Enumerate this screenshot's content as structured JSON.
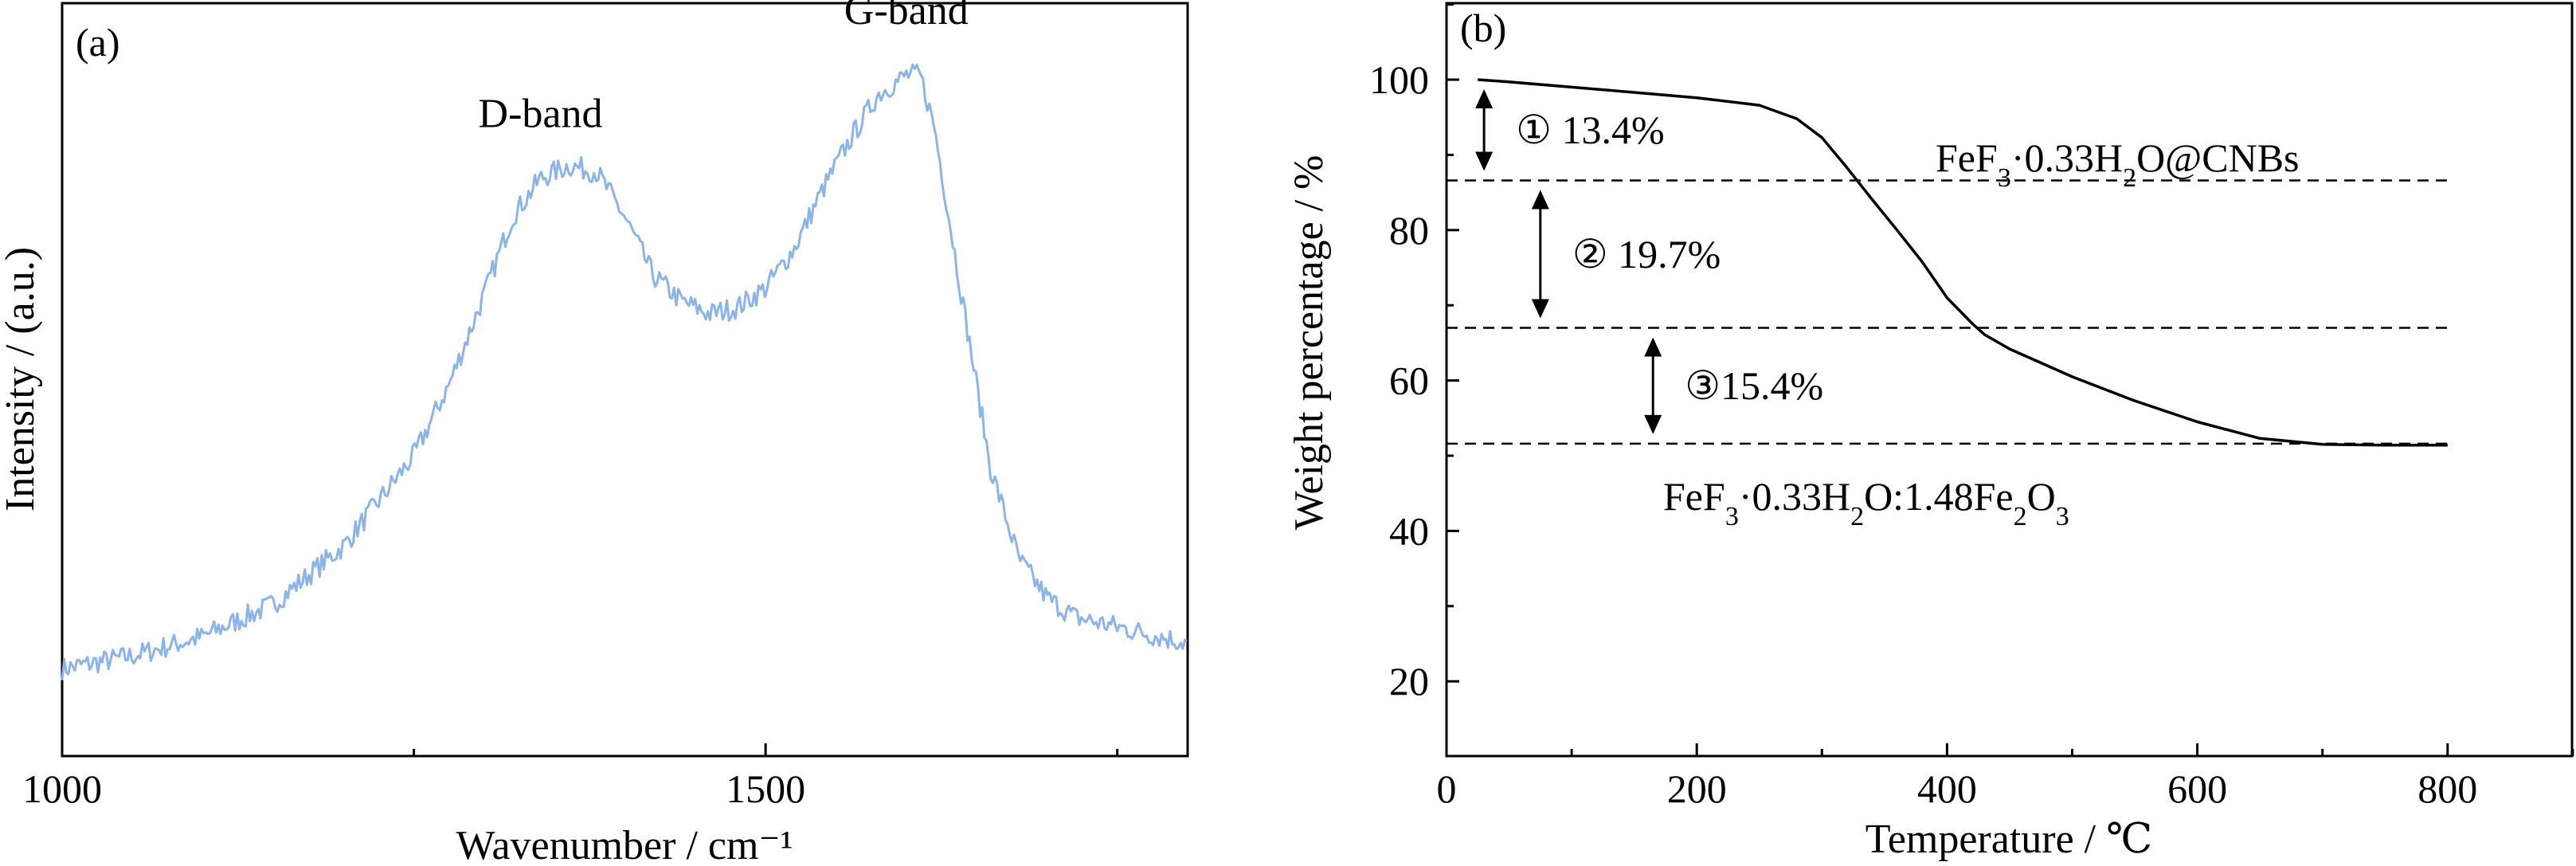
{
  "chart_data": [
    {
      "panel_label": "(a)",
      "type": "line",
      "xlabel": "Wavenumber / cm⁻¹",
      "ylabel": "Intensity / (a.u.)",
      "xlim": [
        1000,
        1800
      ],
      "x_ticks": [
        1000,
        1500
      ],
      "x_minor_ticks": [
        1250,
        1750
      ],
      "y_ticks_shown": false,
      "line_color": "#8db4e6",
      "annotations": [
        {
          "text": "D-band",
          "x": 1340,
          "y": 0.84
        },
        {
          "text": "G-band",
          "x": 1600,
          "y": 1.0
        }
      ],
      "series": [
        {
          "x": [
            1000,
            1050,
            1100,
            1150,
            1200,
            1250,
            1275,
            1300,
            1320,
            1340,
            1360,
            1380,
            1400,
            1420,
            1440,
            1460,
            1480,
            1500,
            1520,
            1540,
            1560,
            1580,
            1600,
            1610,
            1620,
            1640,
            1660,
            1680,
            1700,
            1720,
            1740,
            1760,
            1780,
            1800
          ],
          "y": [
            0.05,
            0.07,
            0.1,
            0.15,
            0.24,
            0.38,
            0.49,
            0.63,
            0.75,
            0.81,
            0.83,
            0.82,
            0.75,
            0.66,
            0.62,
            0.6,
            0.61,
            0.64,
            0.7,
            0.79,
            0.87,
            0.94,
            0.97,
            0.97,
            0.89,
            0.62,
            0.36,
            0.22,
            0.16,
            0.13,
            0.12,
            0.11,
            0.1,
            0.09
          ]
        }
      ]
    },
    {
      "panel_label": "(b)",
      "type": "line",
      "xlabel": "Temperature / ℃",
      "ylabel": "Weight percentage / %",
      "xlim": [
        0,
        900
      ],
      "ylim": [
        10,
        110
      ],
      "x_ticks": [
        0,
        200,
        400,
        600,
        800
      ],
      "y_ticks": [
        20,
        40,
        60,
        80,
        100
      ],
      "line_color": "#000000",
      "series": [
        {
          "x": [
            25,
            50,
            100,
            150,
            200,
            250,
            280,
            300,
            320,
            340,
            360,
            380,
            400,
            420,
            430,
            450,
            500,
            550,
            600,
            650,
            700,
            750,
            800
          ],
          "y": [
            100.0,
            99.7,
            99.0,
            98.3,
            97.6,
            96.6,
            94.8,
            92.3,
            88.3,
            84.1,
            80.0,
            75.8,
            71.0,
            67.6,
            66.1,
            64.2,
            60.5,
            57.3,
            54.5,
            52.3,
            51.5,
            51.4,
            51.4
          ]
        }
      ],
      "reference_lines": [
        86.6,
        67.0,
        51.6
      ],
      "steps": [
        {
          "label": "① 13.4%",
          "from": 100.0,
          "to": 86.6,
          "arrow_x": 30
        },
        {
          "label": "② 19.7%",
          "from": 86.6,
          "to": 67.0,
          "arrow_x": 75
        },
        {
          "label": "③15.4%",
          "from": 67.0,
          "to": 51.6,
          "arrow_x": 165
        }
      ],
      "sample_label": "FeF₃·0.33H₂O@CNBs",
      "residue_label": "FeF₃·0.33H₂O:1.48Fe₂O₃"
    }
  ]
}
